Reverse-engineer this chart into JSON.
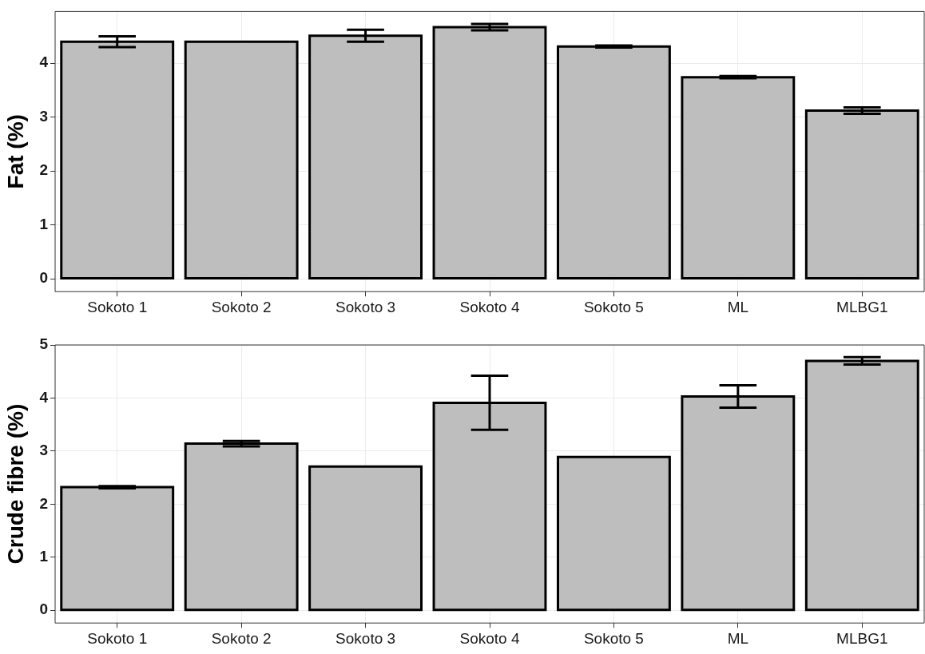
{
  "chart_data": [
    {
      "type": "bar",
      "ylabel": "Fat (%)",
      "categories": [
        "Sokoto 1",
        "Sokoto 2",
        "Sokoto 3",
        "Sokoto 4",
        "Sokoto 5",
        "ML",
        "MLBG1"
      ],
      "values": [
        4.4,
        4.4,
        4.51,
        4.67,
        4.31,
        3.74,
        3.12
      ],
      "errors": [
        0.1,
        null,
        0.11,
        0.06,
        0.02,
        0.02,
        0.06
      ],
      "color": "#bebebe",
      "ylim": [
        -0.24,
        4.96
      ],
      "yticks": [
        0,
        1,
        2,
        3,
        4
      ],
      "grid": true
    },
    {
      "type": "bar",
      "ylabel": "Crude fibre (%)",
      "categories": [
        "Sokoto 1",
        "Sokoto 2",
        "Sokoto 3",
        "Sokoto 4",
        "Sokoto 5",
        "ML",
        "MLBG1"
      ],
      "values": [
        2.32,
        3.14,
        2.71,
        3.91,
        2.89,
        4.03,
        4.7
      ],
      "errors": [
        0.02,
        0.05,
        null,
        0.51,
        null,
        0.21,
        0.07
      ],
      "color": "#bebebe",
      "ylim": [
        -0.24,
        5.0
      ],
      "yticks": [
        0,
        1,
        2,
        3,
        4,
        5
      ],
      "grid": true
    }
  ]
}
